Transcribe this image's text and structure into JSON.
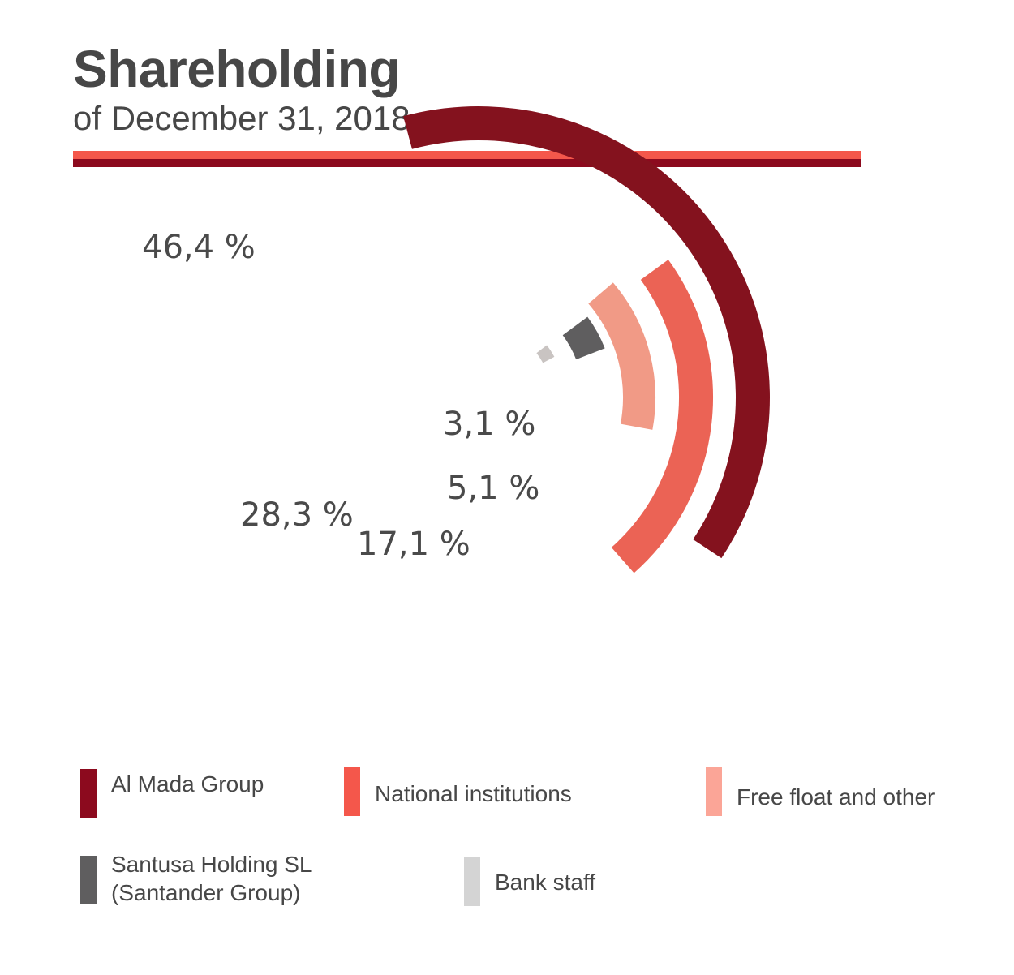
{
  "title": "Shareholding",
  "subtitle": "of December 31, 2018",
  "colors": {
    "rule_top": "#f4574b",
    "rule_bottom": "#8c0a1e"
  },
  "chart_data": {
    "type": "radial-bar",
    "title": "Shareholding",
    "subtitle": "of December 31, 2018",
    "unit": "%",
    "series": [
      {
        "name": "Al Mada Group",
        "value": 46.4,
        "label": "46,4 %",
        "color": "#84121e"
      },
      {
        "name": "National institutions",
        "value": 28.3,
        "label": "28,3 %",
        "color": "#eb6355"
      },
      {
        "name": "Free float and other",
        "value": 17.1,
        "label": "17,1 %",
        "color": "#f19a86"
      },
      {
        "name": "Santusa Holding SL (Santander Group)",
        "value": 5.1,
        "label": "5,1 %",
        "color": "#5f5e5f"
      },
      {
        "name": "Bank staff",
        "value": 3.1,
        "label": "3,1 %",
        "color": "#c9c4c2"
      }
    ]
  },
  "legend": {
    "items": [
      {
        "label_lines": [
          "Al Mada Group"
        ],
        "color": "#8c0a1e"
      },
      {
        "label_lines": [
          "National institutions"
        ],
        "color": "#f4574b"
      },
      {
        "label_lines": [
          "Free float and other"
        ],
        "color": "#fba597"
      },
      {
        "label_lines": [
          "Santusa Holding SL",
          "(Santander Group)"
        ],
        "color": "#5f5e5f"
      },
      {
        "label_lines": [
          "Bank staff"
        ],
        "color": "#d4d4d4"
      }
    ]
  }
}
